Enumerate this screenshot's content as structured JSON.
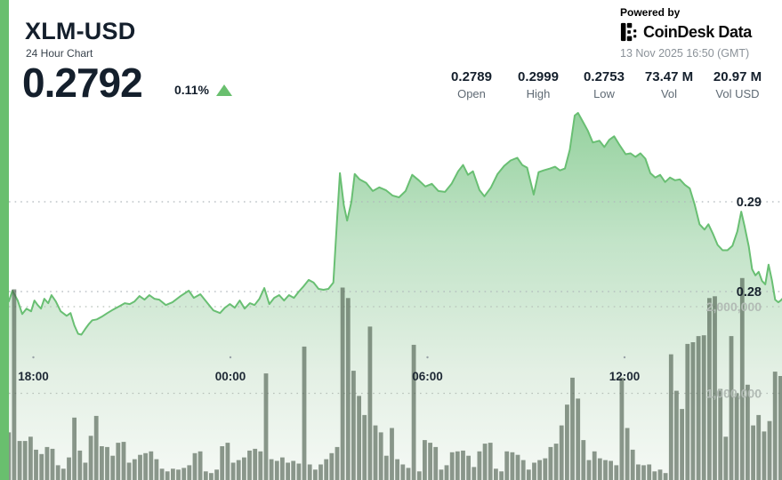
{
  "header": {
    "symbol": "XLM-USD",
    "subtitle": "24 Hour Chart",
    "price": "0.2792",
    "change_pct": "0.11%",
    "change_direction": "up"
  },
  "attribution": {
    "powered_by": "Powered by",
    "brand": "CoinDesk Data",
    "timestamp": "13 Nov 2025 16:50 (GMT)"
  },
  "stats": [
    {
      "value": "0.2789",
      "label": "Open"
    },
    {
      "value": "0.2999",
      "label": "High"
    },
    {
      "value": "0.2753",
      "label": "Low"
    },
    {
      "value": "73.47 M",
      "label": "Vol"
    },
    {
      "value": "20.97 M",
      "label": "Vol USD"
    }
  ],
  "icons": {
    "change_icon": "triangle-up-icon",
    "brand_icon": "coindesk-mark-icon"
  },
  "colors": {
    "accent_green": "#69bf6e",
    "line_green": "#69bf73",
    "area_top": "#8bcd95",
    "area_bottom": "#f5f9f5",
    "volume_bar": "#485a4a",
    "text_dark": "#141f2c",
    "text_gray": "#8b9299",
    "volume_label_gray": "#b2bbb5"
  },
  "chart_data": {
    "type": "area",
    "description": "24h price line with volume bars; time axis starts 16:50 previous day (GMT)",
    "x_axis": {
      "unit": "hours_from_start",
      "ticks": [
        {
          "hour_offset": 1.167,
          "label": "18:00"
        },
        {
          "hour_offset": 7.167,
          "label": "00:00"
        },
        {
          "hour_offset": 13.167,
          "label": "06:00"
        },
        {
          "hour_offset": 19.167,
          "label": "12:00"
        }
      ]
    },
    "price_axis": {
      "side": "right",
      "ticks": [
        {
          "value": 0.29,
          "label": "0.29"
        },
        {
          "value": 0.28,
          "label": "0.28"
        }
      ],
      "visible_range": [
        0.2745,
        0.301
      ]
    },
    "volume_axis": {
      "side": "right",
      "ticks": [
        {
          "value_millions": 2,
          "label": "2,000,000"
        },
        {
          "value_millions": 1,
          "label": "1,000,000"
        }
      ]
    },
    "price_series": [
      [
        0.0,
        0.2789
      ],
      [
        0.42,
        0.2789
      ],
      [
        0.53,
        0.2801
      ],
      [
        0.69,
        0.279
      ],
      [
        0.83,
        0.2775
      ],
      [
        0.96,
        0.2781
      ],
      [
        1.1,
        0.2778
      ],
      [
        1.2,
        0.279
      ],
      [
        1.3,
        0.2785
      ],
      [
        1.4,
        0.2781
      ],
      [
        1.5,
        0.2792
      ],
      [
        1.62,
        0.2787
      ],
      [
        1.72,
        0.2796
      ],
      [
        1.85,
        0.2789
      ],
      [
        2.0,
        0.2778
      ],
      [
        2.18,
        0.2773
      ],
      [
        2.3,
        0.2776
      ],
      [
        2.42,
        0.2762
      ],
      [
        2.53,
        0.2753
      ],
      [
        2.63,
        0.2752
      ],
      [
        2.74,
        0.2758
      ],
      [
        2.86,
        0.2764
      ],
      [
        2.96,
        0.2768
      ],
      [
        3.1,
        0.2769
      ],
      [
        3.25,
        0.2772
      ],
      [
        3.42,
        0.2776
      ],
      [
        3.6,
        0.278
      ],
      [
        3.8,
        0.2784
      ],
      [
        3.95,
        0.2787
      ],
      [
        4.1,
        0.2786
      ],
      [
        4.25,
        0.2789
      ],
      [
        4.4,
        0.2795
      ],
      [
        4.55,
        0.2791
      ],
      [
        4.7,
        0.2796
      ],
      [
        4.85,
        0.2792
      ],
      [
        5.0,
        0.2791
      ],
      [
        5.2,
        0.2785
      ],
      [
        5.4,
        0.2788
      ],
      [
        5.65,
        0.2795
      ],
      [
        5.9,
        0.2801
      ],
      [
        6.05,
        0.2793
      ],
      [
        6.25,
        0.2797
      ],
      [
        6.45,
        0.2788
      ],
      [
        6.65,
        0.2779
      ],
      [
        6.85,
        0.2776
      ],
      [
        7.0,
        0.2782
      ],
      [
        7.15,
        0.2786
      ],
      [
        7.3,
        0.2782
      ],
      [
        7.45,
        0.279
      ],
      [
        7.6,
        0.2781
      ],
      [
        7.76,
        0.2787
      ],
      [
        7.9,
        0.2785
      ],
      [
        8.05,
        0.2792
      ],
      [
        8.2,
        0.2804
      ],
      [
        8.35,
        0.2786
      ],
      [
        8.5,
        0.2793
      ],
      [
        8.65,
        0.2796
      ],
      [
        8.8,
        0.279
      ],
      [
        8.95,
        0.2796
      ],
      [
        9.1,
        0.2793
      ],
      [
        9.25,
        0.28
      ],
      [
        9.4,
        0.2806
      ],
      [
        9.55,
        0.2813
      ],
      [
        9.7,
        0.281
      ],
      [
        9.85,
        0.2803
      ],
      [
        10.0,
        0.2802
      ],
      [
        10.15,
        0.2803
      ],
      [
        10.3,
        0.281
      ],
      [
        10.42,
        0.2884
      ],
      [
        10.5,
        0.2932
      ],
      [
        10.62,
        0.2896
      ],
      [
        10.72,
        0.2879
      ],
      [
        10.85,
        0.29
      ],
      [
        10.95,
        0.2931
      ],
      [
        11.1,
        0.2925
      ],
      [
        11.3,
        0.2921
      ],
      [
        11.5,
        0.2912
      ],
      [
        11.7,
        0.2916
      ],
      [
        11.9,
        0.2913
      ],
      [
        12.1,
        0.2907
      ],
      [
        12.3,
        0.2905
      ],
      [
        12.5,
        0.2912
      ],
      [
        12.7,
        0.293
      ],
      [
        12.9,
        0.2924
      ],
      [
        13.1,
        0.2917
      ],
      [
        13.3,
        0.292
      ],
      [
        13.5,
        0.2912
      ],
      [
        13.7,
        0.2911
      ],
      [
        13.9,
        0.292
      ],
      [
        14.1,
        0.2934
      ],
      [
        14.25,
        0.2941
      ],
      [
        14.4,
        0.293
      ],
      [
        14.55,
        0.2934
      ],
      [
        14.75,
        0.2913
      ],
      [
        14.9,
        0.2906
      ],
      [
        15.1,
        0.2916
      ],
      [
        15.3,
        0.2931
      ],
      [
        15.5,
        0.294
      ],
      [
        15.7,
        0.2946
      ],
      [
        15.9,
        0.2949
      ],
      [
        16.05,
        0.2941
      ],
      [
        16.2,
        0.2938
      ],
      [
        16.4,
        0.2908
      ],
      [
        16.55,
        0.2933
      ],
      [
        16.7,
        0.2935
      ],
      [
        16.9,
        0.2937
      ],
      [
        17.05,
        0.2939
      ],
      [
        17.2,
        0.2935
      ],
      [
        17.35,
        0.2937
      ],
      [
        17.5,
        0.2958
      ],
      [
        17.65,
        0.2996
      ],
      [
        17.75,
        0.2999
      ],
      [
        17.9,
        0.2989
      ],
      [
        18.05,
        0.2979
      ],
      [
        18.2,
        0.2966
      ],
      [
        18.4,
        0.2968
      ],
      [
        18.55,
        0.2961
      ],
      [
        18.7,
        0.2969
      ],
      [
        18.85,
        0.2973
      ],
      [
        19.0,
        0.2964
      ],
      [
        19.2,
        0.2953
      ],
      [
        19.35,
        0.2954
      ],
      [
        19.5,
        0.295
      ],
      [
        19.65,
        0.2954
      ],
      [
        19.8,
        0.2948
      ],
      [
        19.95,
        0.2932
      ],
      [
        20.1,
        0.2927
      ],
      [
        20.25,
        0.293
      ],
      [
        20.4,
        0.2922
      ],
      [
        20.55,
        0.2927
      ],
      [
        20.7,
        0.2924
      ],
      [
        20.85,
        0.2925
      ],
      [
        21.0,
        0.2919
      ],
      [
        21.15,
        0.2915
      ],
      [
        21.3,
        0.2897
      ],
      [
        21.45,
        0.2875
      ],
      [
        21.6,
        0.2869
      ],
      [
        21.72,
        0.2875
      ],
      [
        21.85,
        0.2865
      ],
      [
        22.0,
        0.2852
      ],
      [
        22.15,
        0.2846
      ],
      [
        22.3,
        0.2846
      ],
      [
        22.45,
        0.2851
      ],
      [
        22.6,
        0.2867
      ],
      [
        22.72,
        0.2889
      ],
      [
        22.82,
        0.2873
      ],
      [
        22.95,
        0.285
      ],
      [
        23.05,
        0.2825
      ],
      [
        23.15,
        0.2818
      ],
      [
        23.25,
        0.2822
      ],
      [
        23.35,
        0.2812
      ],
      [
        23.45,
        0.2808
      ],
      [
        23.55,
        0.283
      ],
      [
        23.65,
        0.2813
      ],
      [
        23.75,
        0.2791
      ],
      [
        23.85,
        0.2788
      ],
      [
        23.92,
        0.279
      ],
      [
        23.97,
        0.2792
      ]
    ],
    "volume_series_millions": [
      0.8,
      0.7,
      0.55,
      2.2,
      0.45,
      0.45,
      0.5,
      0.35,
      0.3,
      0.38,
      0.36,
      0.17,
      0.13,
      0.26,
      0.72,
      0.34,
      0.2,
      0.51,
      0.74,
      0.39,
      0.38,
      0.28,
      0.43,
      0.44,
      0.2,
      0.24,
      0.29,
      0.31,
      0.33,
      0.24,
      0.13,
      0.1,
      0.13,
      0.12,
      0.14,
      0.17,
      0.31,
      0.33,
      0.1,
      0.08,
      0.12,
      0.39,
      0.43,
      0.2,
      0.23,
      0.26,
      0.34,
      0.36,
      0.33,
      1.23,
      0.24,
      0.22,
      0.26,
      0.2,
      0.22,
      0.19,
      1.54,
      0.18,
      0.12,
      0.18,
      0.24,
      0.31,
      0.38,
      2.22,
      2.1,
      1.26,
      0.97,
      0.75,
      1.77,
      0.63,
      0.55,
      0.28,
      0.6,
      0.24,
      0.18,
      0.14,
      1.56,
      0.1,
      0.46,
      0.43,
      0.38,
      0.12,
      0.17,
      0.32,
      0.33,
      0.34,
      0.28,
      0.15,
      0.33,
      0.42,
      0.43,
      0.13,
      0.1,
      0.33,
      0.32,
      0.29,
      0.23,
      0.12,
      0.2,
      0.23,
      0.25,
      0.38,
      0.42,
      0.63,
      0.87,
      1.18,
      0.94,
      0.46,
      0.23,
      0.33,
      0.25,
      0.23,
      0.22,
      0.17,
      1.18,
      0.6,
      0.35,
      0.18,
      0.17,
      0.18,
      0.1,
      0.12,
      0.08,
      1.45,
      1.03,
      0.82,
      1.57,
      1.59,
      1.66,
      1.67,
      2.1,
      2.12,
      1.05,
      0.5,
      1.66,
      1.0,
      2.33,
      1.1,
      0.63,
      0.75,
      0.56,
      0.68,
      1.25,
      1.2
    ]
  }
}
